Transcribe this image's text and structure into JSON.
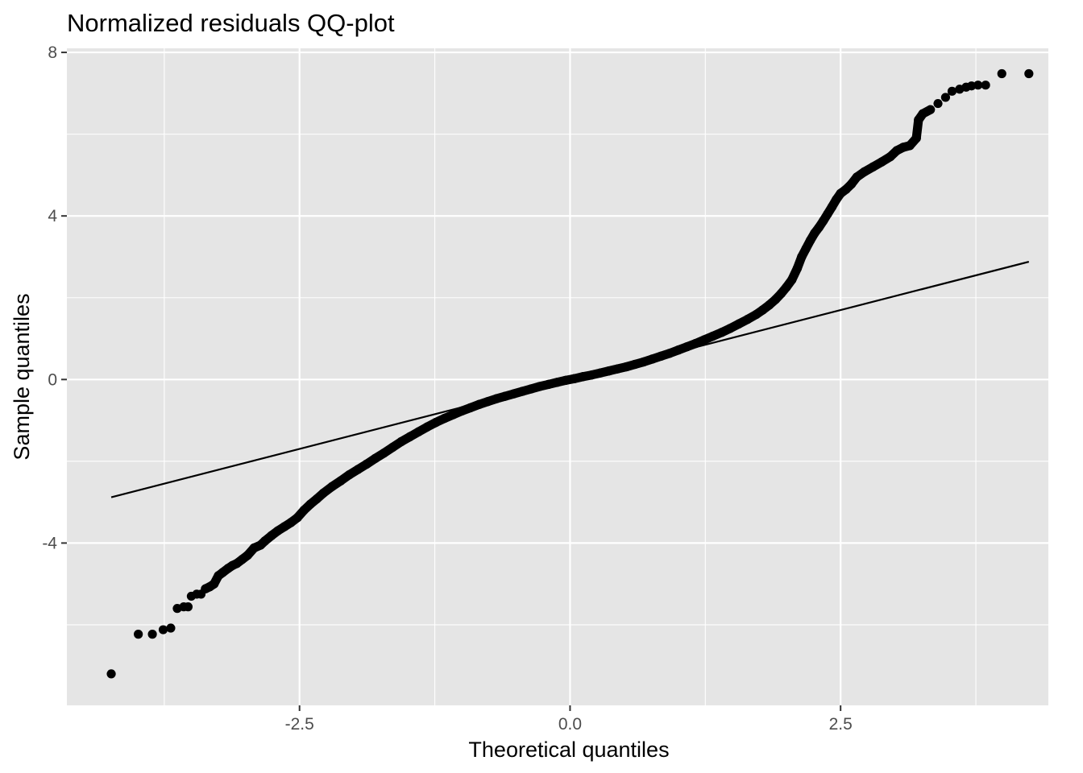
{
  "chart_data": {
    "type": "scatter",
    "title": "Normalized residuals QQ-plot",
    "xlabel": "Theoretical quantiles",
    "ylabel": "Sample quantiles",
    "xlim": [
      -4.65,
      4.42
    ],
    "ylim": [
      -7.97,
      8.1
    ],
    "x_ticks": [
      -2.5,
      0.0,
      2.5
    ],
    "x_tick_labels": [
      "-2.5",
      "0.0",
      "2.5"
    ],
    "x_minor_ticks": [
      -3.75,
      -1.25,
      1.25,
      3.75
    ],
    "y_ticks": [
      -4,
      0,
      4,
      8
    ],
    "y_tick_labels": [
      "-4",
      "0",
      "4",
      "8"
    ],
    "y_minor_ticks": [
      -6,
      -2,
      2,
      6
    ],
    "grid": true,
    "panel_background": "#e5e5e5",
    "grid_color": "#ffffff",
    "point_color": "#000000",
    "line_color": "#000000",
    "reference_line": {
      "x": [
        -4.24,
        4.24
      ],
      "y": [
        -2.88,
        2.88
      ]
    },
    "series": [
      {
        "points": [
          [
            -4.24,
            -7.2
          ],
          [
            -3.99,
            -6.23
          ],
          [
            -3.86,
            -6.23
          ],
          [
            -3.76,
            -6.12
          ],
          [
            -3.69,
            -6.08
          ],
          [
            -3.63,
            -5.6
          ],
          [
            -3.57,
            -5.56
          ],
          [
            -3.53,
            -5.56
          ],
          [
            -3.5,
            -5.3
          ],
          [
            -3.45,
            -5.25
          ],
          [
            -3.41,
            -5.25
          ],
          [
            -3.37,
            -5.12
          ],
          [
            -3.33,
            -5.07
          ],
          [
            -3.29,
            -5.0
          ],
          [
            -3.25,
            -4.8
          ],
          [
            -3.21,
            -4.72
          ],
          [
            -3.16,
            -4.62
          ],
          [
            -3.12,
            -4.55
          ],
          [
            -3.08,
            -4.5
          ],
          [
            -3.03,
            -4.4
          ],
          [
            -2.98,
            -4.3
          ],
          [
            -2.92,
            -4.12
          ],
          [
            -2.86,
            -4.05
          ],
          [
            -2.82,
            -3.95
          ],
          [
            -2.76,
            -3.82
          ],
          [
            -2.7,
            -3.7
          ],
          [
            -2.64,
            -3.6
          ],
          [
            -2.58,
            -3.5
          ],
          [
            -2.52,
            -3.38
          ],
          [
            -2.46,
            -3.2
          ],
          [
            -2.4,
            -3.05
          ],
          [
            -2.34,
            -2.92
          ],
          [
            -2.28,
            -2.78
          ],
          [
            -2.2,
            -2.62
          ],
          [
            -2.12,
            -2.48
          ],
          [
            -2.04,
            -2.33
          ],
          [
            -1.96,
            -2.2
          ],
          [
            -1.88,
            -2.07
          ],
          [
            -1.8,
            -1.93
          ],
          [
            -1.72,
            -1.8
          ],
          [
            -1.64,
            -1.66
          ],
          [
            -1.56,
            -1.52
          ],
          [
            -1.48,
            -1.4
          ],
          [
            -1.4,
            -1.28
          ],
          [
            -1.32,
            -1.16
          ],
          [
            -1.24,
            -1.05
          ],
          [
            -1.16,
            -0.95
          ],
          [
            -1.08,
            -0.86
          ],
          [
            -1.0,
            -0.77
          ],
          [
            -0.92,
            -0.69
          ],
          [
            -0.84,
            -0.61
          ],
          [
            -0.76,
            -0.54
          ],
          [
            -0.68,
            -0.47
          ],
          [
            -0.6,
            -0.41
          ],
          [
            -0.52,
            -0.35
          ],
          [
            -0.44,
            -0.29
          ],
          [
            -0.36,
            -0.23
          ],
          [
            -0.28,
            -0.17
          ],
          [
            -0.2,
            -0.12
          ],
          [
            -0.12,
            -0.07
          ],
          [
            -0.04,
            -0.02
          ],
          [
            0.04,
            0.02
          ],
          [
            0.12,
            0.07
          ],
          [
            0.2,
            0.11
          ],
          [
            0.28,
            0.16
          ],
          [
            0.36,
            0.21
          ],
          [
            0.44,
            0.26
          ],
          [
            0.52,
            0.31
          ],
          [
            0.6,
            0.37
          ],
          [
            0.68,
            0.43
          ],
          [
            0.76,
            0.5
          ],
          [
            0.84,
            0.57
          ],
          [
            0.92,
            0.64
          ],
          [
            1.0,
            0.72
          ],
          [
            1.08,
            0.8
          ],
          [
            1.16,
            0.88
          ],
          [
            1.24,
            0.97
          ],
          [
            1.32,
            1.06
          ],
          [
            1.4,
            1.15
          ],
          [
            1.48,
            1.25
          ],
          [
            1.56,
            1.36
          ],
          [
            1.64,
            1.47
          ],
          [
            1.72,
            1.59
          ],
          [
            1.78,
            1.7
          ],
          [
            1.84,
            1.82
          ],
          [
            1.9,
            1.96
          ],
          [
            1.95,
            2.1
          ],
          [
            2.0,
            2.26
          ],
          [
            2.05,
            2.44
          ],
          [
            2.1,
            2.72
          ],
          [
            2.14,
            3.0
          ],
          [
            2.18,
            3.2
          ],
          [
            2.22,
            3.4
          ],
          [
            2.26,
            3.58
          ],
          [
            2.3,
            3.72
          ],
          [
            2.34,
            3.88
          ],
          [
            2.38,
            4.05
          ],
          [
            2.42,
            4.22
          ],
          [
            2.46,
            4.4
          ],
          [
            2.5,
            4.55
          ],
          [
            2.55,
            4.65
          ],
          [
            2.6,
            4.78
          ],
          [
            2.65,
            4.95
          ],
          [
            2.72,
            5.08
          ],
          [
            2.8,
            5.2
          ],
          [
            2.88,
            5.32
          ],
          [
            2.96,
            5.45
          ],
          [
            3.02,
            5.6
          ],
          [
            3.08,
            5.68
          ],
          [
            3.14,
            5.72
          ],
          [
            3.2,
            5.9
          ],
          [
            3.22,
            6.35
          ],
          [
            3.26,
            6.5
          ],
          [
            3.33,
            6.6
          ],
          [
            3.4,
            6.75
          ],
          [
            3.47,
            6.9
          ],
          [
            3.53,
            7.05
          ],
          [
            3.6,
            7.1
          ],
          [
            3.66,
            7.15
          ],
          [
            3.71,
            7.18
          ],
          [
            3.77,
            7.2
          ],
          [
            3.84,
            7.2
          ],
          [
            3.99,
            7.48
          ],
          [
            4.24,
            7.48
          ]
        ]
      }
    ]
  }
}
